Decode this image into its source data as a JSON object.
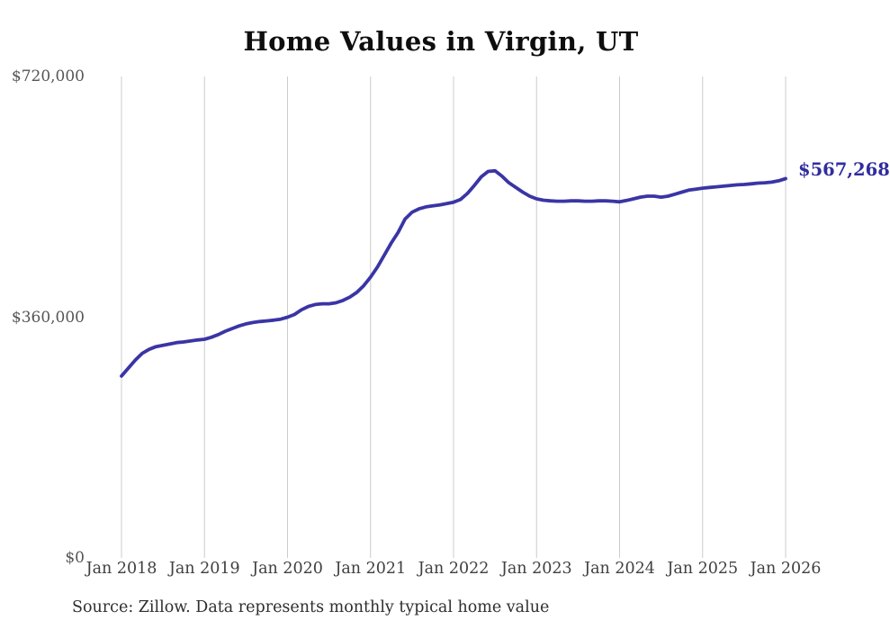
{
  "title": "Home Values in Virgin, UT",
  "end_label": "$567,268",
  "source_note": "Source: Zillow. Data represents monthly typical home value",
  "colors": {
    "line": "#3a35a5",
    "end_label_text": "#312d9d",
    "gridline": "#cccccc",
    "y_axis_text": "#555555",
    "x_axis_text": "#3f3f3f",
    "title_text": "#0e0e0e"
  },
  "chart_data": {
    "type": "line",
    "title": "Home Values in Virgin, UT",
    "unit": "USD",
    "interval": "monthly",
    "start_month": "Jan 2018",
    "end_month": "Jan 2026",
    "x_tick_labels": [
      "Jan 2018",
      "Jan 2019",
      "Jan 2020",
      "Jan 2021",
      "Jan 2022",
      "Jan 2023",
      "Jan 2024",
      "Jan 2025",
      "Jan 2026"
    ],
    "months_per_x_tick": 12,
    "y_ticks": [
      0,
      360000,
      720000
    ],
    "y_tick_labels": [
      "$0",
      "$360,000",
      "$720,000"
    ],
    "ylim": [
      0,
      720000
    ],
    "grid": "vertical-only",
    "legend": "none",
    "end_value": 567268,
    "series": [
      {
        "name": "Typical home value",
        "values": [
          272000,
          284000,
          296000,
          306000,
          312000,
          316000,
          318000,
          320000,
          322000,
          323000,
          324500,
          326000,
          327000,
          330000,
          334000,
          339000,
          343000,
          347000,
          350000,
          352000,
          353500,
          354500,
          355500,
          357000,
          360000,
          364000,
          371000,
          376000,
          379000,
          380000,
          380000,
          381500,
          385000,
          390000,
          397000,
          407000,
          420000,
          435000,
          453000,
          471000,
          487000,
          507000,
          517000,
          522000,
          525000,
          526500,
          528000,
          530000,
          532000,
          536000,
          545000,
          557000,
          570000,
          578000,
          579000,
          571000,
          561000,
          554000,
          547000,
          541000,
          537000,
          535000,
          534000,
          533500,
          533500,
          534000,
          534000,
          533500,
          533500,
          534000,
          534000,
          533500,
          532500,
          534500,
          537000,
          539500,
          541000,
          541000,
          539500,
          541000,
          544000,
          547000,
          550000,
          551500,
          553000,
          554000,
          555000,
          556000,
          557000,
          558000,
          558500,
          559500,
          560500,
          561000,
          562000,
          564000,
          567268
        ]
      }
    ]
  }
}
